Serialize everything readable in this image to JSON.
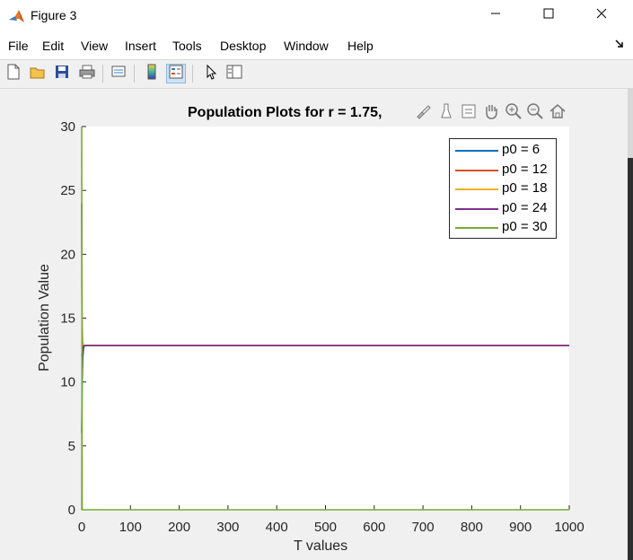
{
  "window": {
    "title": "Figure 3",
    "icon": "matlab-logo-icon",
    "controls": [
      "minimize-icon",
      "maximize-icon",
      "close-icon"
    ]
  },
  "menu": {
    "items": [
      "File",
      "Edit",
      "View",
      "Insert",
      "Tools",
      "Desktop",
      "Window",
      "Help"
    ],
    "corner_icon": "dock-arrow-icon"
  },
  "toolbar": {
    "buttons": [
      "new-figure-icon",
      "open-file-icon",
      "save-icon",
      "print-icon",
      "link-plot-icon",
      "colorbar-icon",
      "legend-icon",
      "edit-plot-cursor-icon",
      "property-inspector-icon"
    ],
    "pressed": "legend-icon"
  },
  "axes_toolbar": {
    "buttons": [
      "brush-icon",
      "data-tips-icon",
      "datatip-icon",
      "pan-hand-icon",
      "zoom-in-icon",
      "zoom-out-icon",
      "home-icon"
    ]
  },
  "chart_data": {
    "type": "line",
    "title": "Population Plots for r = 1.75,",
    "xlabel": "T values",
    "ylabel": "Population Value",
    "xlim": [
      0,
      1000
    ],
    "ylim": [
      0,
      30
    ],
    "xticks": [
      0,
      100,
      200,
      300,
      400,
      500,
      600,
      700,
      800,
      900,
      1000
    ],
    "yticks": [
      0,
      5,
      10,
      15,
      20,
      25,
      30
    ],
    "grid": false,
    "legend_position": "top-right",
    "series": [
      {
        "name": "p0 = 6",
        "color": "#0072BD",
        "x": [
          0,
          1,
          2,
          4,
          6,
          8,
          1000
        ],
        "y": [
          6,
          9.8,
          11.8,
          12.7,
          12.85,
          12.86,
          12.86
        ]
      },
      {
        "name": "p0 = 12",
        "color": "#D95319",
        "x": [
          0,
          1,
          2,
          4,
          6,
          8,
          1000
        ],
        "y": [
          12,
          12.6,
          12.8,
          12.86,
          12.86,
          12.86,
          12.86
        ]
      },
      {
        "name": "p0 = 18",
        "color": "#EDB120",
        "x": [
          0,
          1,
          2,
          4,
          6,
          8,
          1000
        ],
        "y": [
          18,
          14.2,
          13.1,
          12.9,
          12.86,
          12.86,
          12.86
        ]
      },
      {
        "name": "p0 = 24",
        "color": "#7E2F8E",
        "x": [
          0,
          1,
          2,
          4,
          6,
          8,
          1000
        ],
        "y": [
          24,
          10.5,
          12.3,
          12.8,
          12.86,
          12.86,
          12.86
        ]
      },
      {
        "name": "p0 = 30",
        "color": "#77AC30",
        "x": [
          0,
          1,
          2,
          3,
          1000
        ],
        "y": [
          30,
          0,
          0,
          0,
          0
        ]
      }
    ]
  }
}
